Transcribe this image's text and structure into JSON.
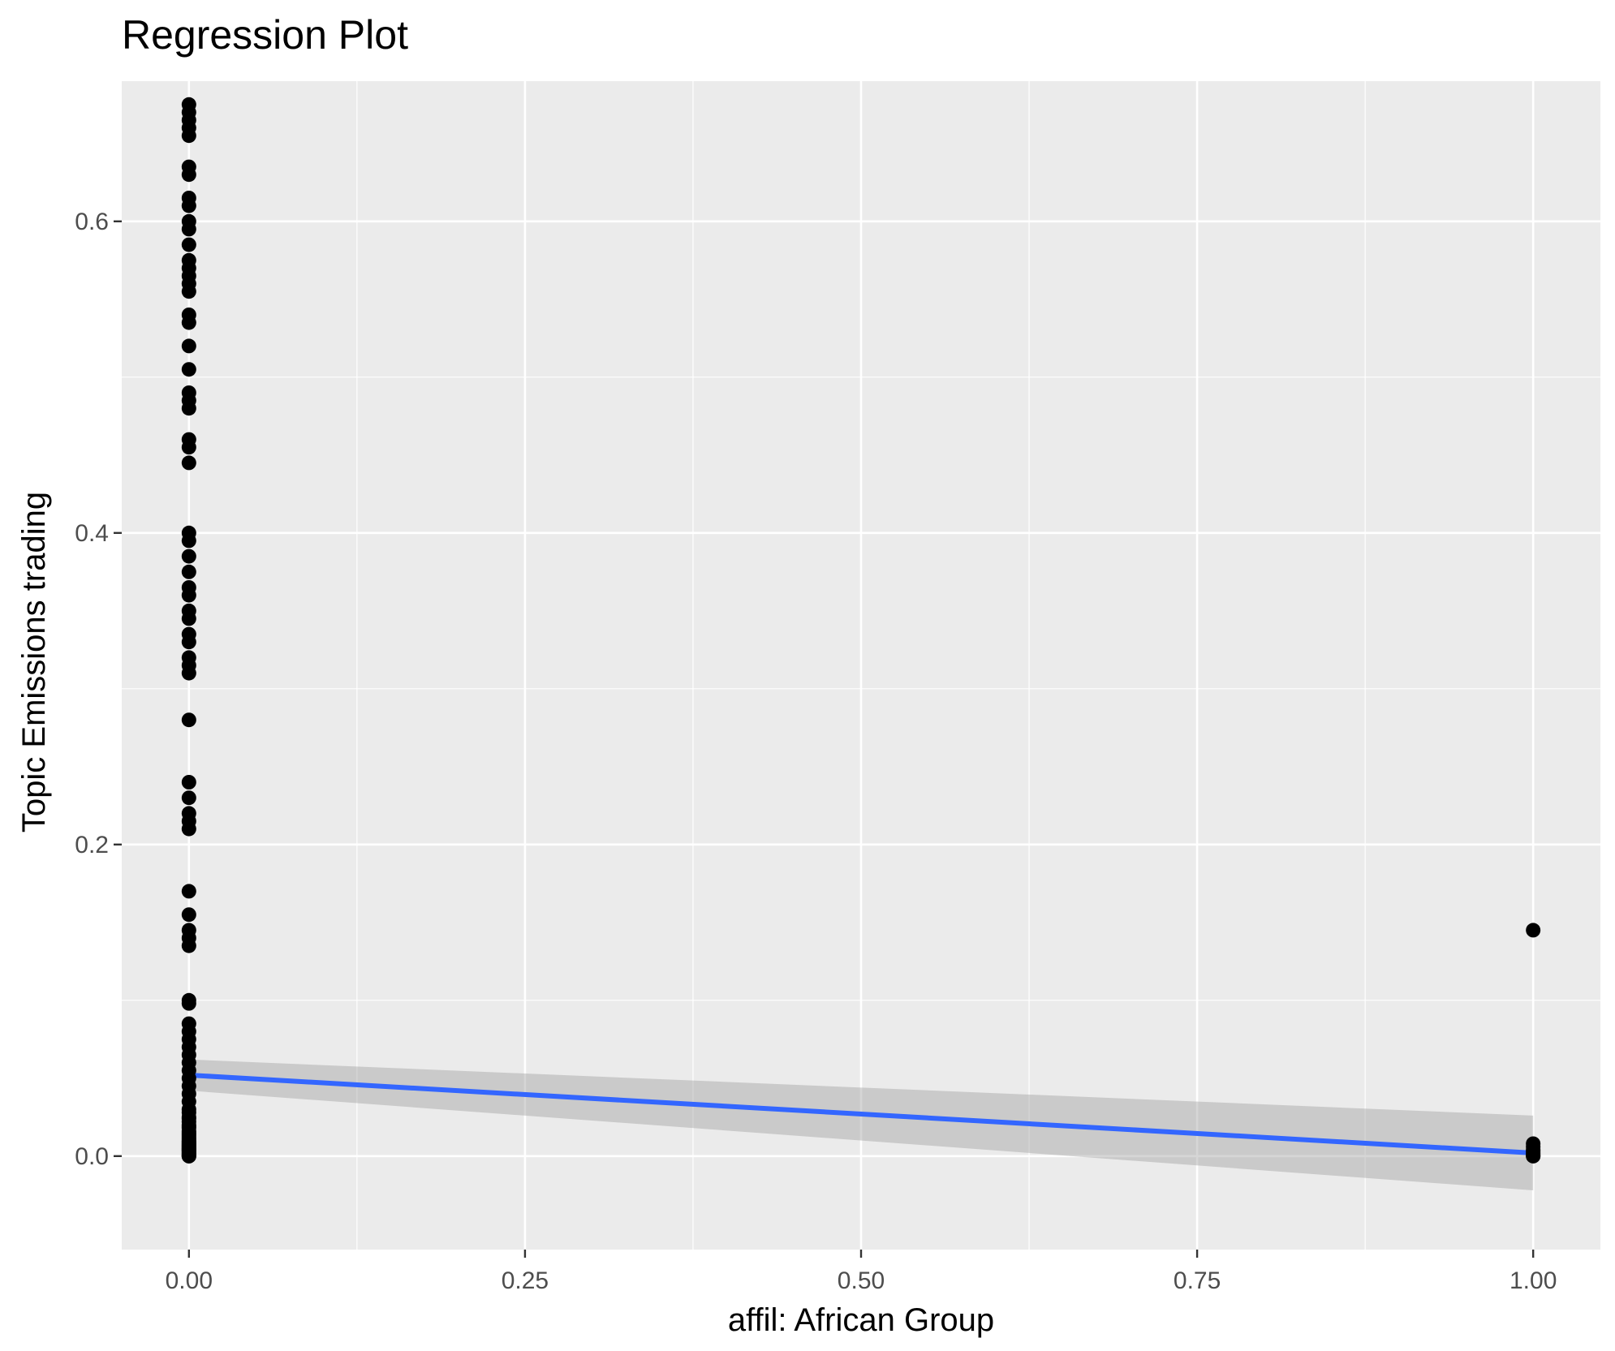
{
  "chart_data": {
    "type": "scatter",
    "title": "Regression Plot",
    "xlabel": "affil: African Group",
    "ylabel": "Topic Emissions trading",
    "xlim": [
      -0.05,
      1.05
    ],
    "ylim": [
      -0.06,
      0.69
    ],
    "x_ticks": [
      0.0,
      0.25,
      0.5,
      0.75,
      1.0
    ],
    "x_tick_labels": [
      "0.00",
      "0.25",
      "0.50",
      "0.75",
      "1.00"
    ],
    "y_ticks": [
      0.0,
      0.2,
      0.4,
      0.6
    ],
    "y_tick_labels": [
      "0.0",
      "0.2",
      "0.4",
      "0.6"
    ],
    "grid": true,
    "legend": "none",
    "series": [
      {
        "x": [
          0,
          0,
          0,
          0,
          0,
          0,
          0,
          0,
          0,
          0,
          0,
          0,
          0,
          0,
          0,
          0,
          0,
          0,
          0,
          0,
          0,
          0,
          0,
          0,
          0,
          0,
          0,
          0,
          0,
          0,
          0,
          0,
          0,
          0,
          0,
          0,
          0,
          0,
          0,
          0,
          0,
          0,
          0,
          0,
          0,
          0,
          0,
          0,
          0,
          0,
          0,
          0,
          0,
          0,
          0,
          0,
          0,
          0,
          0,
          0,
          0,
          0,
          0,
          0,
          0,
          0,
          0,
          0,
          0,
          0,
          0,
          0,
          0,
          0,
          0,
          0,
          0,
          0,
          0,
          0,
          0,
          0,
          0,
          0,
          0,
          0,
          0,
          0,
          0,
          0,
          0,
          0,
          0,
          0,
          0,
          0,
          0,
          0,
          0,
          0,
          1,
          1,
          1,
          1,
          1,
          1,
          1,
          1,
          1
        ],
        "y": [
          0.675,
          0.67,
          0.665,
          0.66,
          0.655,
          0.635,
          0.63,
          0.615,
          0.61,
          0.6,
          0.595,
          0.585,
          0.575,
          0.57,
          0.565,
          0.56,
          0.555,
          0.54,
          0.535,
          0.52,
          0.505,
          0.49,
          0.485,
          0.48,
          0.46,
          0.455,
          0.445,
          0.4,
          0.395,
          0.385,
          0.375,
          0.365,
          0.36,
          0.35,
          0.345,
          0.335,
          0.33,
          0.32,
          0.315,
          0.31,
          0.28,
          0.24,
          0.23,
          0.22,
          0.215,
          0.21,
          0.17,
          0.155,
          0.145,
          0.14,
          0.135,
          0.1,
          0.098,
          0.085,
          0.08,
          0.075,
          0.07,
          0.065,
          0.06,
          0.055,
          0.05,
          0.045,
          0.04,
          0.035,
          0.03,
          0.028,
          0.025,
          0.022,
          0.02,
          0.018,
          0.015,
          0.013,
          0.012,
          0.01,
          0.009,
          0.008,
          0.007,
          0.006,
          0.005,
          0.004,
          0.003,
          0.002,
          0.001,
          0.0,
          0.0,
          0.0,
          0.001,
          0.002,
          0.003,
          0.004,
          0.005,
          0.006,
          0.007,
          0.008,
          0.009,
          0.011,
          0.014,
          0.016,
          0.019,
          0.024,
          0.145,
          0.008,
          0.006,
          0.004,
          0.003,
          0.002,
          0.001,
          0.0,
          0.0
        ],
        "color": "#000000"
      }
    ],
    "regression": {
      "x": [
        0,
        1
      ],
      "y": [
        0.052,
        0.002
      ],
      "ci_lower": [
        0.042,
        -0.022
      ],
      "ci_upper": [
        0.062,
        0.026
      ],
      "color": "#3366ff",
      "band_color": "#999999"
    },
    "panel_background": "#ebebeb",
    "grid_color": "#ffffff"
  }
}
